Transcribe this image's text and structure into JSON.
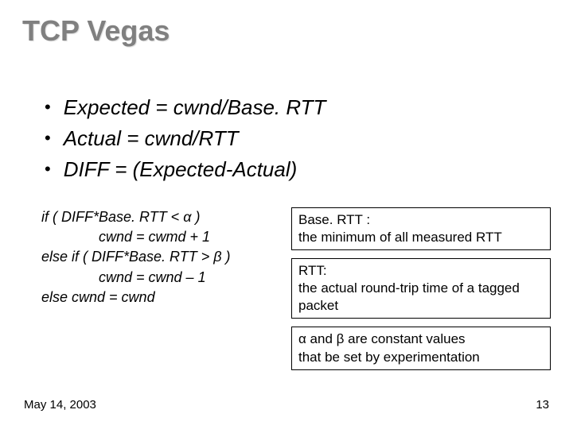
{
  "title": "TCP Vegas",
  "bullets": [
    "Expected = cwnd/Base. RTT",
    "Actual = cwnd/RTT",
    "DIFF = (Expected-Actual)"
  ],
  "pseudocode": {
    "l1": "if ( DIFF*Base. RTT < α )",
    "l2": "cwnd = cwmd + 1",
    "l3": "else if ( DIFF*Base. RTT > β )",
    "l4": "cwnd = cwnd – 1",
    "l5": "else cwnd = cwnd"
  },
  "notes": {
    "box1_head": "Base. RTT :",
    "box1_body": "the minimum of all measured RTT",
    "box2_head": "RTT:",
    "box2_body": "the actual round-trip time of a tagged packet",
    "box3_line1": "α and β are constant values",
    "box3_line2": "that be set by experimentation"
  },
  "footer": {
    "date": "May 14, 2003",
    "page": "13"
  }
}
